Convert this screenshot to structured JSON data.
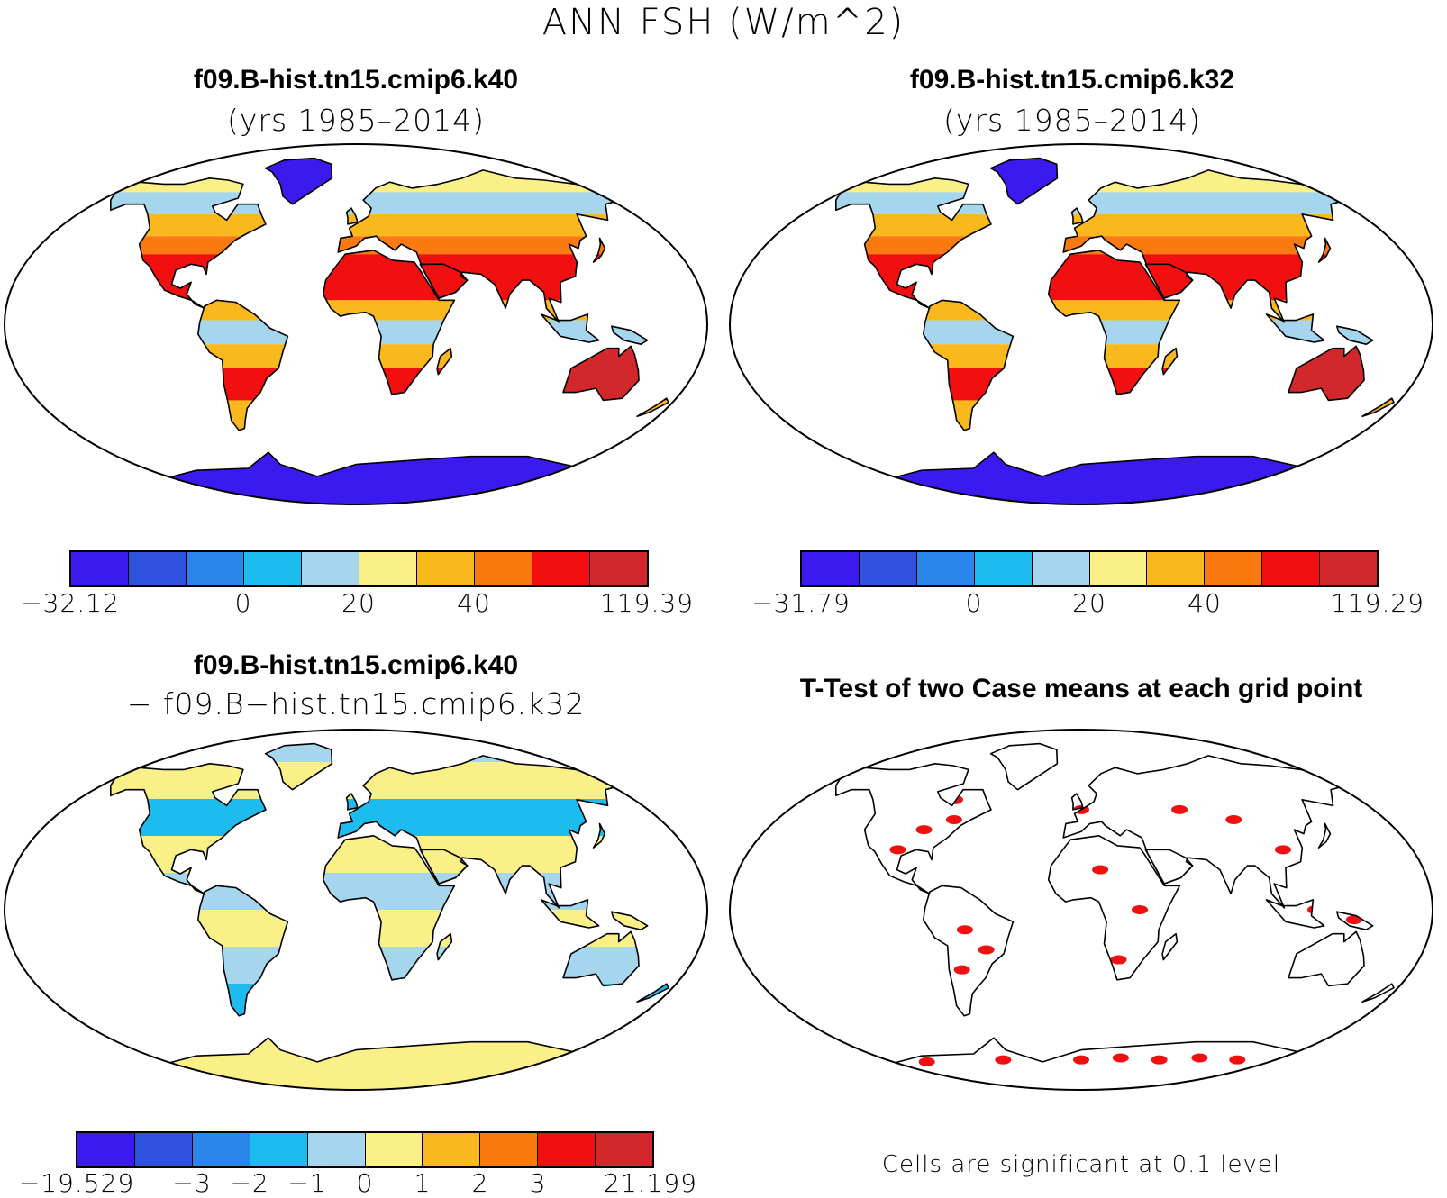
{
  "title": "ANN FSH (W/m^2)",
  "palette": [
    "#3b1aef",
    "#2f52de",
    "#2a86ea",
    "#1dbcef",
    "#a5d6ee",
    "#fbf087",
    "#f9b81c",
    "#fa7a10",
    "#f20f10",
    "#d3282b"
  ],
  "t_test_color": "#f20f10",
  "panels": [
    {
      "title": "f09.B-hist.tn15.cmip6.k40",
      "subtitle": "(yrs 1985–2014)",
      "colorbar_labels": [
        "−32.12",
        "0",
        "20",
        "40",
        "119.39"
      ]
    },
    {
      "title": "f09.B-hist.tn15.cmip6.k32",
      "subtitle": "(yrs 1985–2014)",
      "colorbar_labels": [
        "−31.79",
        "0",
        "20",
        "40",
        "119.29"
      ]
    },
    {
      "title": "f09.B-hist.tn15.cmip6.k40",
      "subtitle": "− f09.B−hist.tn15.cmip6.k32",
      "colorbar_labels": [
        "−19.529",
        "−3",
        "−2",
        "−1",
        "0",
        "1",
        "2",
        "3",
        "21.199"
      ]
    },
    {
      "title": "T-Test of two Case means at each grid point",
      "note": "Cells are significant at 0.1 level"
    }
  ]
}
